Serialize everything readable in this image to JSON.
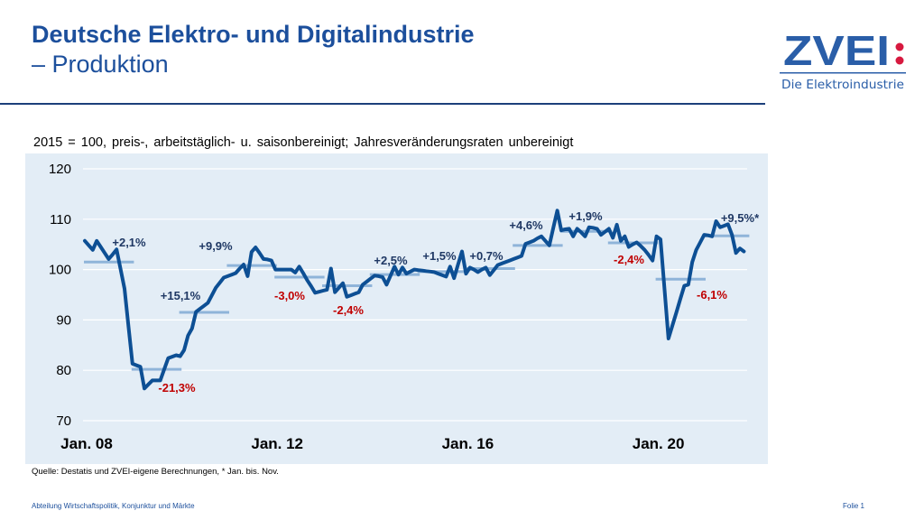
{
  "header": {
    "title_line1": "Deutsche Elektro- und Digitalindustrie",
    "title_line2": "– Produktion"
  },
  "logo": {
    "text": "ZVEI",
    "colon": ":",
    "tagline": "Die Elektroindustrie"
  },
  "subtitle": "2015 = 100, preis-, arbeitstäglich- u. saisonbereinigt; Jahresveränderungsraten unbereinigt",
  "source": "Quelle: Destatis und ZVEI-eigene Berechnungen, * Jan. bis. Nov.",
  "footer": {
    "left": "Abteilung Wirtschaftspolitik, Konjunktur und Märkte",
    "right": "Folie 1"
  },
  "colors": {
    "title": "#1c4f9c",
    "line": "#0d4f94",
    "average": "#8fb4d9",
    "plot_bg": "#e3edf6",
    "positive_label": "#1f3864",
    "negative_label": "#c00000",
    "logo_red": "#d7193f"
  },
  "chart_data": {
    "type": "line",
    "title": "",
    "xlabel": "",
    "ylabel": "",
    "ylim": [
      70,
      120
    ],
    "yticks": [
      70,
      80,
      90,
      100,
      110,
      120
    ],
    "xtick_labels": [
      "Jan. 08",
      "Jan. 12",
      "Jan. 16",
      "Jan. 20"
    ],
    "grid": true,
    "x_start": "2008-01",
    "x_end": "2021-11",
    "frequency": "monthly",
    "series": [
      {
        "values": [
          105.7,
          104.8,
          103.9,
          105.7,
          104.5,
          103.3,
          102.1,
          103.0,
          104.0,
          100.1,
          96.2,
          88.7,
          81.3,
          81.0,
          80.7,
          76.4,
          77.2,
          78.0,
          78.0,
          78.0,
          80.2,
          82.4,
          82.7,
          83.0,
          82.8,
          84.0,
          86.9,
          88.3,
          91.6,
          92.2,
          92.8,
          93.4,
          94.9,
          96.4,
          97.4,
          98.4,
          98.7,
          99.0,
          99.3,
          100.2,
          101.0,
          98.7,
          103.5,
          104.4,
          103.3,
          102.1,
          102.0,
          101.8,
          100.0,
          100.0,
          100.0,
          100.0,
          100.0,
          99.4,
          100.6,
          99.3,
          97.9,
          96.7,
          95.4,
          95.6,
          95.8,
          96.0,
          100.2,
          95.5,
          96.4,
          97.3,
          94.6,
          94.9,
          95.2,
          95.5,
          97.0,
          97.6,
          98.2,
          98.8,
          98.7,
          98.5,
          97.0,
          98.8,
          100.6,
          99.0,
          100.4,
          99.2,
          99.6,
          100.0,
          99.9,
          99.8,
          99.7,
          99.6,
          99.5,
          99.2,
          98.9,
          98.6,
          100.6,
          98.3,
          101.0,
          103.6,
          99.2,
          100.4,
          100.0,
          99.5,
          100.0,
          100.4,
          98.9,
          99.9,
          100.9,
          101.2,
          101.5,
          101.8,
          102.1,
          102.4,
          102.7,
          105.1,
          105.4,
          105.7,
          106.2,
          106.6,
          105.7,
          104.8,
          108.3,
          111.7,
          107.8,
          108.0,
          108.1,
          106.6,
          108.1,
          107.4,
          106.6,
          108.4,
          108.3,
          108.1,
          106.9,
          107.5,
          108.1,
          106.3,
          108.9,
          105.7,
          106.6,
          104.5,
          105.0,
          105.4,
          104.7,
          103.9,
          102.9,
          101.8,
          106.6,
          106.0,
          96.2,
          86.3,
          88.9,
          91.5,
          94.2,
          96.8,
          97.0,
          101.5,
          103.9,
          105.4,
          106.9,
          106.8,
          106.6,
          109.6,
          108.4,
          108.7,
          109.0,
          106.9,
          103.3,
          104.2,
          103.6
        ]
      }
    ],
    "annual_averages": [
      {
        "year": 2008,
        "value": 101.5,
        "label": "+2,1%",
        "sign": "positive"
      },
      {
        "year": 2009,
        "value": 80.2,
        "label": "-21,3%",
        "sign": "negative"
      },
      {
        "year": 2010,
        "value": 91.5,
        "label": "+15,1%",
        "sign": "positive"
      },
      {
        "year": 2011,
        "value": 100.8,
        "label": "+9,9%",
        "sign": "positive"
      },
      {
        "year": 2012,
        "value": 98.5,
        "label": "-3,0%",
        "sign": "negative"
      },
      {
        "year": 2013,
        "value": 96.8,
        "label": "-2,4%",
        "sign": "negative"
      },
      {
        "year": 2014,
        "value": 99.0,
        "label": "+2,5%",
        "sign": "positive"
      },
      {
        "year": 2015,
        "value": 99.6,
        "label": "+1,5%",
        "sign": "positive"
      },
      {
        "year": 2016,
        "value": 100.2,
        "label": "+0,7%",
        "sign": "positive"
      },
      {
        "year": 2017,
        "value": 104.8,
        "label": "+4,6%",
        "sign": "positive"
      },
      {
        "year": 2018,
        "value": 107.6,
        "label": "+1,9%",
        "sign": "positive"
      },
      {
        "year": 2019,
        "value": 105.3,
        "label": "-2,4%",
        "sign": "negative"
      },
      {
        "year": 2020,
        "value": 98.1,
        "label": "-6,1%",
        "sign": "negative"
      },
      {
        "year": 2021,
        "value": 106.7,
        "label": "+9,5%*",
        "sign": "positive"
      }
    ]
  }
}
